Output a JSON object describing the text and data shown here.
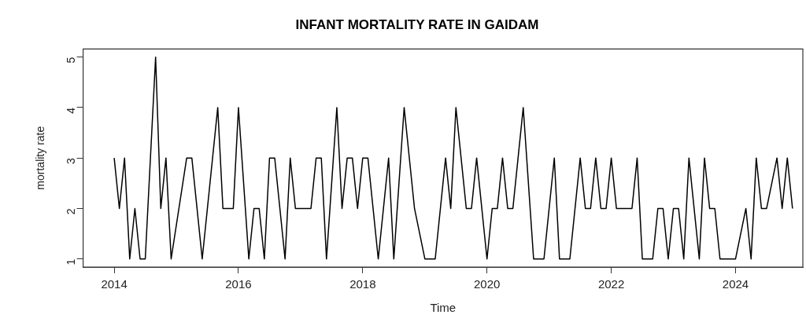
{
  "chart_data": {
    "type": "line",
    "title": "INFANT MORTALITY RATE IN GAIDAM",
    "xlabel": "Time",
    "ylabel": "mortality rate",
    "series": [
      {
        "color": "#000000",
        "x": [
          "2014-01",
          "2014-02",
          "2014-03",
          "2014-04",
          "2014-05",
          "2014-06",
          "2014-07",
          "2014-09",
          "2014-10",
          "2014-11",
          "2014-12",
          "2015-03",
          "2015-04",
          "2015-06",
          "2015-09",
          "2015-10",
          "2015-12",
          "2016-01",
          "2016-03",
          "2016-04",
          "2016-05",
          "2016-06",
          "2016-07",
          "2016-08",
          "2016-10",
          "2016-11",
          "2016-12",
          "2017-03",
          "2017-04",
          "2017-05",
          "2017-06",
          "2017-08",
          "2017-09",
          "2017-10",
          "2017-11",
          "2017-12",
          "2018-01",
          "2018-02",
          "2018-04",
          "2018-06",
          "2018-07",
          "2018-09",
          "2018-11",
          "2019-01",
          "2019-03",
          "2019-05",
          "2019-06",
          "2019-07",
          "2019-09",
          "2019-10",
          "2019-11",
          "2020-01",
          "2020-02",
          "2020-03",
          "2020-04",
          "2020-05",
          "2020-06",
          "2020-08",
          "2020-10",
          "2020-12",
          "2021-02",
          "2021-03",
          "2021-05",
          "2021-07",
          "2021-08",
          "2021-09",
          "2021-10",
          "2021-11",
          "2021-12",
          "2022-01",
          "2022-02",
          "2022-05",
          "2022-06",
          "2022-07",
          "2022-09",
          "2022-10",
          "2022-11",
          "2022-12",
          "2023-01",
          "2023-02",
          "2023-03",
          "2023-04",
          "2023-06",
          "2023-07",
          "2023-08",
          "2023-09",
          "2023-10",
          "2024-01",
          "2024-03",
          "2024-04",
          "2024-05",
          "2024-06",
          "2024-07",
          "2024-09",
          "2024-10",
          "2024-11",
          "2024-12"
        ],
        "values": [
          3,
          2,
          3,
          1,
          2,
          1,
          1,
          5,
          2,
          3,
          1,
          3,
          3,
          1,
          4,
          2,
          2,
          4,
          1,
          2,
          2,
          1,
          3,
          3,
          1,
          3,
          2,
          2,
          3,
          3,
          1,
          4,
          2,
          3,
          3,
          2,
          3,
          3,
          1,
          3,
          1,
          4,
          2,
          1,
          1,
          3,
          2,
          4,
          2,
          2,
          3,
          1,
          2,
          2,
          3,
          2,
          2,
          4,
          1,
          1,
          3,
          1,
          1,
          3,
          2,
          2,
          3,
          2,
          2,
          3,
          2,
          2,
          3,
          1,
          1,
          2,
          2,
          1,
          2,
          2,
          1,
          3,
          1,
          3,
          2,
          2,
          1,
          1,
          2,
          1,
          3,
          2,
          2,
          3,
          2,
          3,
          2
        ]
      }
    ],
    "xlim": [
      "2013-07",
      "2025-02"
    ],
    "xticks": [
      "2014",
      "2016",
      "2018",
      "2020",
      "2022",
      "2024"
    ],
    "ylim": [
      0.84,
      5.16
    ],
    "yticks": [
      1,
      2,
      3,
      4,
      5
    ],
    "grid": false,
    "legend": false,
    "marker": "none",
    "line_style": "solid"
  }
}
